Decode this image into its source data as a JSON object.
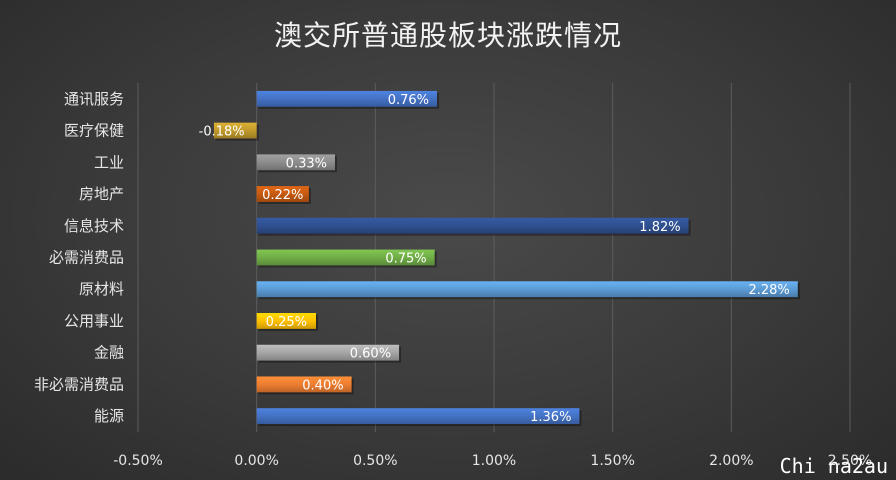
{
  "chart_data": {
    "type": "bar",
    "orientation": "horizontal",
    "title": "澳交所普通股板块涨跌情况",
    "categories": [
      "通讯服务",
      "医疗保健",
      "工业",
      "房地产",
      "信息技术",
      "必需消费品",
      "原材料",
      "公用事业",
      "金融",
      "非必需消费品",
      "能源"
    ],
    "values": [
      0.76,
      -0.18,
      0.33,
      0.22,
      1.82,
      0.75,
      2.28,
      0.25,
      0.6,
      0.4,
      1.36
    ],
    "data_labels": [
      "0.76%",
      "-0.18%",
      "0.33%",
      "0.22%",
      "1.82%",
      "0.75%",
      "2.28%",
      "0.25%",
      "0.60%",
      "0.40%",
      "1.36%"
    ],
    "colors": [
      "#4472c4",
      "#c09a2c",
      "#8c8c8c",
      "#c55a11",
      "#2f4f8f",
      "#70ad47",
      "#5b9bd5",
      "#ffc000",
      "#a5a5a5",
      "#ed7d31",
      "#4472c4"
    ],
    "xlim": [
      -0.5,
      2.5
    ],
    "xticks": [
      "-0.50%",
      "0.00%",
      "0.50%",
      "1.00%",
      "1.50%",
      "2.00%",
      "2.50%"
    ],
    "xlabel": "",
    "ylabel": "",
    "grid": "vertical",
    "legend": "none"
  },
  "watermark": "Chi na2au"
}
